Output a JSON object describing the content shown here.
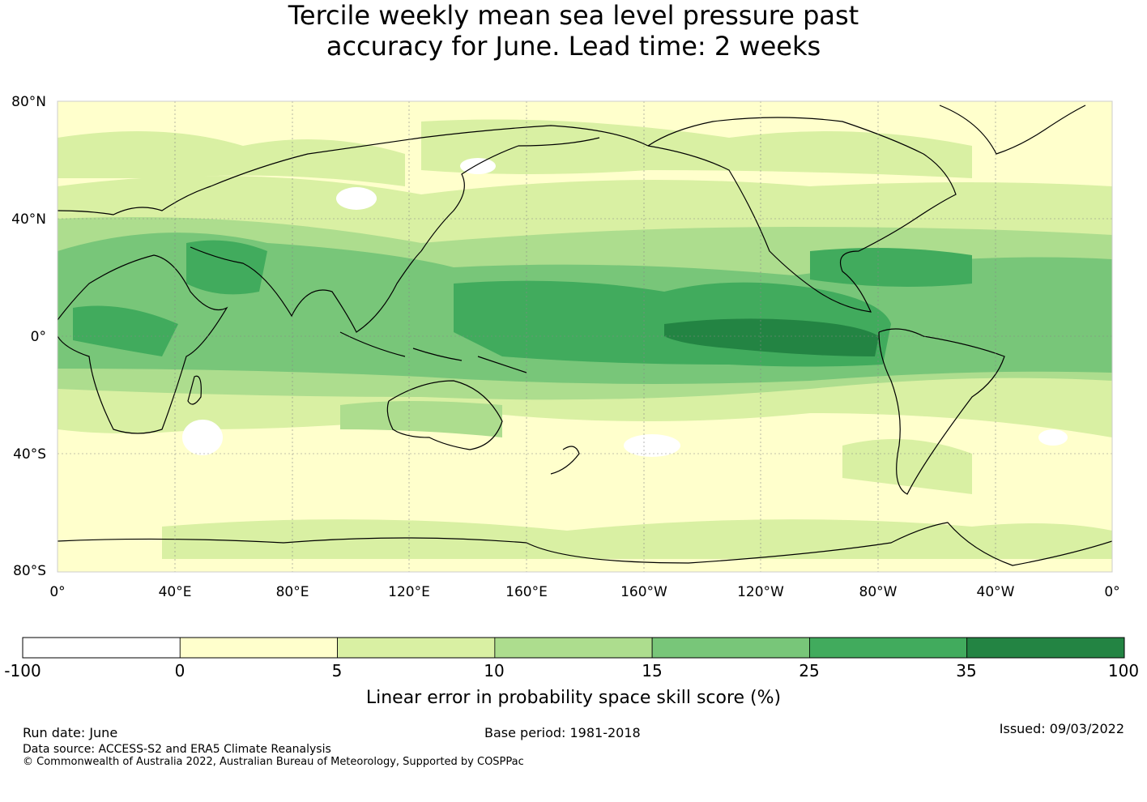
{
  "title_line1": "Tercile weekly mean sea level pressure past",
  "title_line2": "accuracy for June. Lead time: 2 weeks",
  "map": {
    "lat_labels": [
      "80°N",
      "40°N",
      "0°",
      "40°S",
      "80°S"
    ],
    "lon_labels": [
      "0°",
      "40°E",
      "80°E",
      "120°E",
      "160°E",
      "160°W",
      "120°W",
      "80°W",
      "40°W",
      "0°"
    ],
    "colors": {
      "neg": "#ffffff",
      "c0": "#ffffcc",
      "c5": "#d9f0a3",
      "c10": "#addd8e",
      "c15": "#78c679",
      "c25": "#41ab5d",
      "c35": "#238443",
      "coast": "#000000",
      "grid": "#888888"
    }
  },
  "colorbar": {
    "tick_labels": [
      "-100",
      "0",
      "5",
      "10",
      "15",
      "25",
      "35",
      "100"
    ],
    "bin_colors": [
      "#ffffff",
      "#ffffcc",
      "#d9f0a3",
      "#addd8e",
      "#78c679",
      "#41ab5d",
      "#238443"
    ],
    "label": "Linear error in probability space skill score (%)"
  },
  "footer": {
    "run_date": "Run date: June",
    "base_period": "Base period: 1981-2018",
    "issued": "Issued: 09/03/2022",
    "data_source": "Data source: ACCESS-S2 and ERA5 Climate Reanalysis",
    "copyright": "© Commonwealth of Australia 2022, Australian Bureau of Meteorology, Supported by COSPPac"
  }
}
